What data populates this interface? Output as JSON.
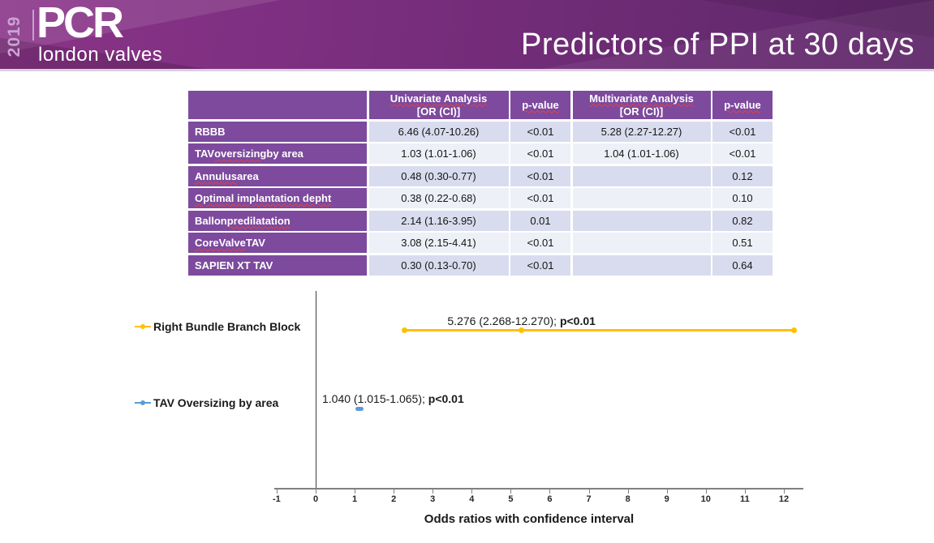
{
  "header": {
    "year": "2019",
    "logo_main": "PCR",
    "logo_sub": "london valves",
    "title": "Predictors of PPI at 30 days"
  },
  "colors": {
    "table_header_bg": "#7D4A9E",
    "row_band_dark": "#D9DCEE",
    "row_band_light": "#EEF0F8",
    "accent_yellow": "#FFC000",
    "accent_blue": "#5B9BD5"
  },
  "chart_data": [
    {
      "type": "table",
      "columns": [
        {
          "lines": [
            {
              "text": "",
              "squiggle": false
            }
          ]
        },
        {
          "lines": [
            {
              "text": "Univariate Analysis",
              "squiggle": true
            },
            {
              "text": "[OR (CI)]",
              "squiggle": false
            }
          ]
        },
        {
          "lines": [
            {
              "text": "p-value",
              "squiggle": true
            }
          ]
        },
        {
          "lines": [
            {
              "text": "Multivariate Analysis",
              "squiggle": true
            },
            {
              "text": "[OR (CI)]",
              "squiggle": false
            }
          ]
        },
        {
          "lines": [
            {
              "text": "p-value",
              "squiggle": true
            }
          ]
        }
      ],
      "rows": [
        {
          "label_parts": [
            {
              "text": "RBBB",
              "squiggle": false
            }
          ],
          "cells": [
            "6.46 (4.07-10.26)",
            "<0.01",
            "5.28 (2.27-12.27)",
            "<0.01"
          ]
        },
        {
          "label_parts": [
            {
              "text": "TAV ",
              "squiggle": false
            },
            {
              "text": "oversizing",
              "squiggle": true
            },
            {
              "text": " by area",
              "squiggle": false
            }
          ],
          "cells": [
            "1.03 (1.01-1.06)",
            "<0.01",
            "1.04 (1.01-1.06)",
            "<0.01"
          ]
        },
        {
          "label_parts": [
            {
              "text": "Annulus",
              "squiggle": true
            },
            {
              "text": " area",
              "squiggle": false
            }
          ],
          "cells": [
            "0.48 (0.30-0.77)",
            "<0.01",
            "",
            "0.12"
          ]
        },
        {
          "label_parts": [
            {
              "text": "Optimal implantation depht",
              "squiggle": true
            }
          ],
          "cells": [
            "0.38 (0.22-0.68)",
            "<0.01",
            "",
            "0.10"
          ]
        },
        {
          "label_parts": [
            {
              "text": "Ballon ",
              "squiggle": false
            },
            {
              "text": "predilatation",
              "squiggle": true
            }
          ],
          "cells": [
            "2.14 (1.16-3.95)",
            "0.01",
            "",
            "0.82"
          ]
        },
        {
          "label_parts": [
            {
              "text": "CoreValve",
              "squiggle": true
            },
            {
              "text": " TAV",
              "squiggle": false
            }
          ],
          "cells": [
            "3.08 (2.15-4.41)",
            "<0.01",
            "",
            "0.51"
          ]
        },
        {
          "label_parts": [
            {
              "text": "SAPIEN XT TAV",
              "squiggle": false
            }
          ],
          "cells": [
            "0.30 (0.13-0.70)",
            "<0.01",
            "",
            "0.64"
          ]
        }
      ]
    },
    {
      "type": "scatter",
      "subtype": "forest",
      "title": "",
      "xlabel": "Odds ratios with confidence interval",
      "ylabel": "",
      "xlim": [
        -1,
        12
      ],
      "x_ticks": [
        -1,
        0,
        1,
        2,
        3,
        4,
        5,
        6,
        7,
        8,
        9,
        10,
        11,
        12
      ],
      "grid": false,
      "legend_position": "left",
      "series": [
        {
          "name": "Right Bundle Branch Block",
          "color": "#FFC000",
          "or": 5.276,
          "ci_low": 2.268,
          "ci_high": 12.27,
          "annotation_value": "5.276 (2.268-12.270); ",
          "annotation_p": "p<0.01"
        },
        {
          "name": "TAV Oversizing by area",
          "color": "#5B9BD5",
          "or": 1.04,
          "ci_low": 1.015,
          "ci_high": 1.065,
          "annotation_value": "1.040 (1.015-1.065); ",
          "annotation_p": "p<0.01"
        }
      ]
    }
  ]
}
